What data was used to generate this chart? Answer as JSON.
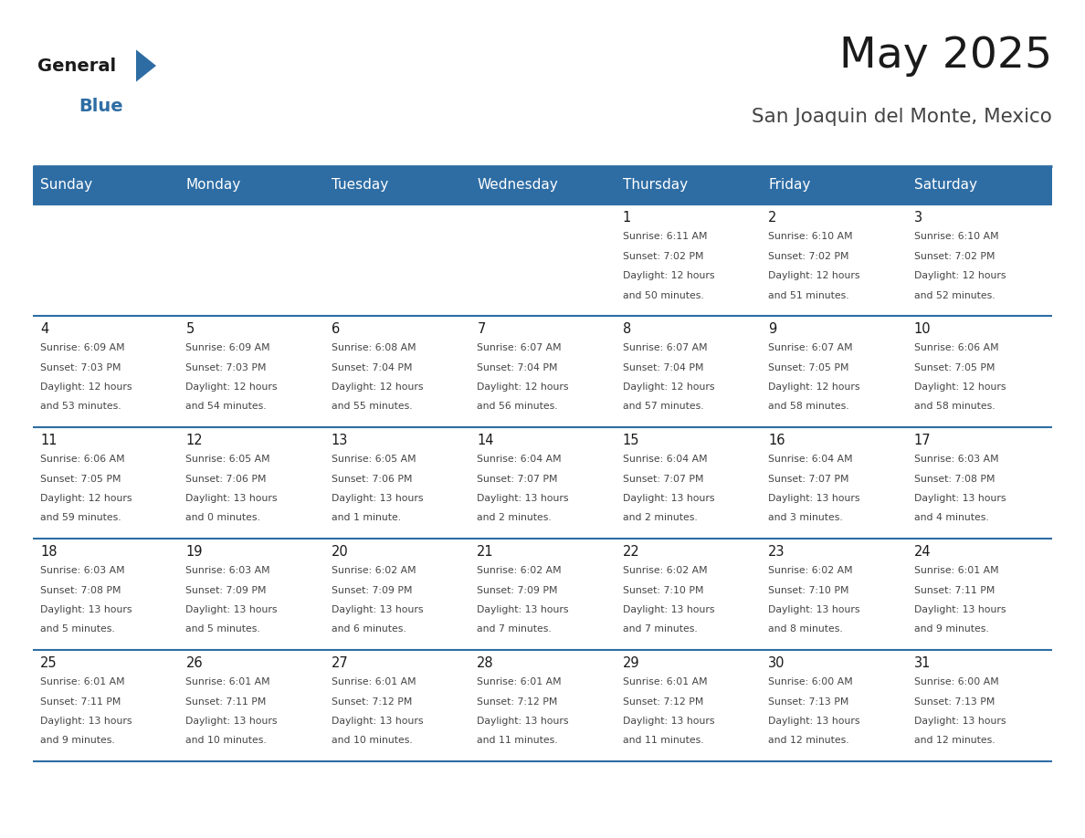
{
  "title": "May 2025",
  "subtitle": "San Joaquin del Monte, Mexico",
  "header_bg": "#2E6DA4",
  "header_text_color": "#FFFFFF",
  "day_headers": [
    "Sunday",
    "Monday",
    "Tuesday",
    "Wednesday",
    "Thursday",
    "Friday",
    "Saturday"
  ],
  "grid_line_color": "#2E6DA4",
  "text_color": "#333333",
  "day_number_color": "#1A1A1A",
  "weeks": [
    {
      "days": [
        null,
        null,
        null,
        null,
        1,
        2,
        3
      ],
      "data": [
        null,
        null,
        null,
        null,
        "Sunrise: 6:11 AM\nSunset: 7:02 PM\nDaylight: 12 hours\nand 50 minutes.",
        "Sunrise: 6:10 AM\nSunset: 7:02 PM\nDaylight: 12 hours\nand 51 minutes.",
        "Sunrise: 6:10 AM\nSunset: 7:02 PM\nDaylight: 12 hours\nand 52 minutes."
      ]
    },
    {
      "days": [
        4,
        5,
        6,
        7,
        8,
        9,
        10
      ],
      "data": [
        "Sunrise: 6:09 AM\nSunset: 7:03 PM\nDaylight: 12 hours\nand 53 minutes.",
        "Sunrise: 6:09 AM\nSunset: 7:03 PM\nDaylight: 12 hours\nand 54 minutes.",
        "Sunrise: 6:08 AM\nSunset: 7:04 PM\nDaylight: 12 hours\nand 55 minutes.",
        "Sunrise: 6:07 AM\nSunset: 7:04 PM\nDaylight: 12 hours\nand 56 minutes.",
        "Sunrise: 6:07 AM\nSunset: 7:04 PM\nDaylight: 12 hours\nand 57 minutes.",
        "Sunrise: 6:07 AM\nSunset: 7:05 PM\nDaylight: 12 hours\nand 58 minutes.",
        "Sunrise: 6:06 AM\nSunset: 7:05 PM\nDaylight: 12 hours\nand 58 minutes."
      ]
    },
    {
      "days": [
        11,
        12,
        13,
        14,
        15,
        16,
        17
      ],
      "data": [
        "Sunrise: 6:06 AM\nSunset: 7:05 PM\nDaylight: 12 hours\nand 59 minutes.",
        "Sunrise: 6:05 AM\nSunset: 7:06 PM\nDaylight: 13 hours\nand 0 minutes.",
        "Sunrise: 6:05 AM\nSunset: 7:06 PM\nDaylight: 13 hours\nand 1 minute.",
        "Sunrise: 6:04 AM\nSunset: 7:07 PM\nDaylight: 13 hours\nand 2 minutes.",
        "Sunrise: 6:04 AM\nSunset: 7:07 PM\nDaylight: 13 hours\nand 2 minutes.",
        "Sunrise: 6:04 AM\nSunset: 7:07 PM\nDaylight: 13 hours\nand 3 minutes.",
        "Sunrise: 6:03 AM\nSunset: 7:08 PM\nDaylight: 13 hours\nand 4 minutes."
      ]
    },
    {
      "days": [
        18,
        19,
        20,
        21,
        22,
        23,
        24
      ],
      "data": [
        "Sunrise: 6:03 AM\nSunset: 7:08 PM\nDaylight: 13 hours\nand 5 minutes.",
        "Sunrise: 6:03 AM\nSunset: 7:09 PM\nDaylight: 13 hours\nand 5 minutes.",
        "Sunrise: 6:02 AM\nSunset: 7:09 PM\nDaylight: 13 hours\nand 6 minutes.",
        "Sunrise: 6:02 AM\nSunset: 7:09 PM\nDaylight: 13 hours\nand 7 minutes.",
        "Sunrise: 6:02 AM\nSunset: 7:10 PM\nDaylight: 13 hours\nand 7 minutes.",
        "Sunrise: 6:02 AM\nSunset: 7:10 PM\nDaylight: 13 hours\nand 8 minutes.",
        "Sunrise: 6:01 AM\nSunset: 7:11 PM\nDaylight: 13 hours\nand 9 minutes."
      ]
    },
    {
      "days": [
        25,
        26,
        27,
        28,
        29,
        30,
        31
      ],
      "data": [
        "Sunrise: 6:01 AM\nSunset: 7:11 PM\nDaylight: 13 hours\nand 9 minutes.",
        "Sunrise: 6:01 AM\nSunset: 7:11 PM\nDaylight: 13 hours\nand 10 minutes.",
        "Sunrise: 6:01 AM\nSunset: 7:12 PM\nDaylight: 13 hours\nand 10 minutes.",
        "Sunrise: 6:01 AM\nSunset: 7:12 PM\nDaylight: 13 hours\nand 11 minutes.",
        "Sunrise: 6:01 AM\nSunset: 7:12 PM\nDaylight: 13 hours\nand 11 minutes.",
        "Sunrise: 6:00 AM\nSunset: 7:13 PM\nDaylight: 13 hours\nand 12 minutes.",
        "Sunrise: 6:00 AM\nSunset: 7:13 PM\nDaylight: 13 hours\nand 12 minutes."
      ]
    }
  ],
  "logo_text_general": "General",
  "logo_text_blue": "Blue",
  "logo_color_general": "#1A1A1A",
  "logo_color_blue": "#2E6DA4",
  "logo_triangle_color": "#2E6DA4"
}
